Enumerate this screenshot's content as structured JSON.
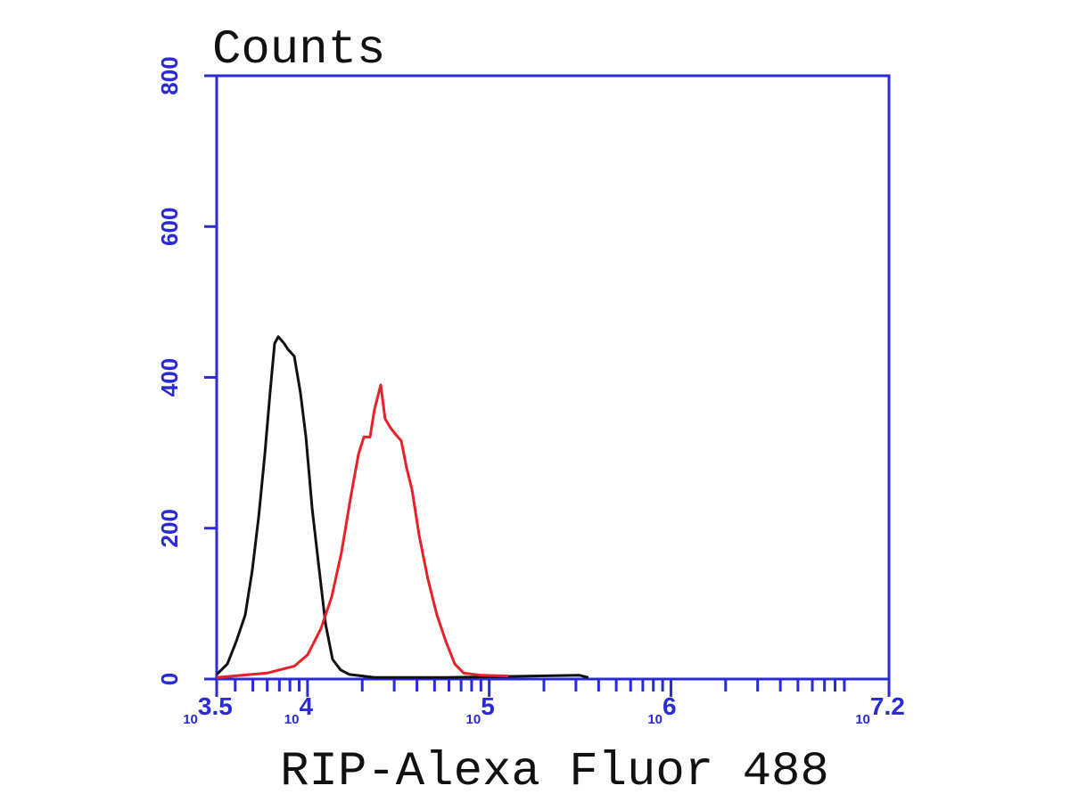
{
  "chart_data": {
    "type": "line",
    "title": "Counts",
    "xlabel": "RIP-Alexa Fluor 488",
    "xlim": [
      3.5,
      7.2
    ],
    "xticks": [
      {
        "value": 3.5,
        "label": "10",
        "power": "3.5"
      },
      {
        "value": 4,
        "label": "10",
        "power": "4"
      },
      {
        "value": 5,
        "label": "10",
        "power": "5"
      },
      {
        "value": 6,
        "label": "10",
        "power": "6"
      },
      {
        "value": 7.2,
        "label": "10",
        "power": "7.2"
      }
    ],
    "log_minor_ticks": true,
    "ylim": [
      0,
      800
    ],
    "yticks": [
      0,
      200,
      400,
      600,
      800
    ],
    "axis_color": "#2a2ad6",
    "series": [
      {
        "color": "#111111",
        "x": [
          3.5,
          3.559,
          3.608,
          3.657,
          3.696,
          3.731,
          3.765,
          3.794,
          3.819,
          3.839,
          3.868,
          3.893,
          3.927,
          3.961,
          3.991,
          4.025,
          4.059,
          4.099,
          4.138,
          4.182,
          4.231,
          4.368,
          4.761,
          5.497,
          5.546
        ],
        "values": [
          6,
          20,
          50,
          85,
          144,
          215,
          298,
          380,
          445,
          454,
          446,
          437,
          428,
          380,
          321,
          227,
          156,
          73,
          26,
          12,
          6,
          2,
          2,
          5,
          2
        ]
      },
      {
        "color": "#e8202a",
        "x": [
          3.5,
          3.78,
          3.927,
          4.0,
          4.074,
          4.133,
          4.187,
          4.236,
          4.28,
          4.31,
          4.344,
          4.368,
          4.403,
          4.427,
          4.457,
          4.486,
          4.516,
          4.545,
          4.575,
          4.614,
          4.663,
          4.712,
          4.761,
          4.81,
          4.859,
          4.957,
          5.105
        ],
        "values": [
          2,
          8,
          17,
          32,
          67,
          109,
          168,
          239,
          298,
          321,
          321,
          357,
          390,
          345,
          333,
          324,
          316,
          280,
          251,
          191,
          132,
          85,
          50,
          20,
          8,
          5,
          4
        ]
      }
    ]
  }
}
